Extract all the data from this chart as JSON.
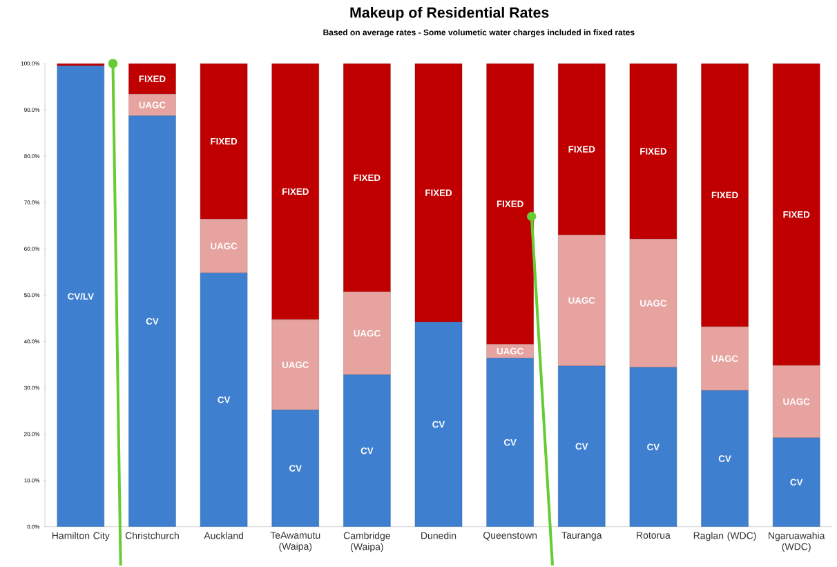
{
  "chart_data": {
    "type": "bar",
    "stacked": true,
    "title": "Makeup of Residential Rates",
    "subtitle": "Based on average rates - Some volumetic water charges included in fixed rates",
    "categories": [
      "Hamilton City",
      "Christchurch",
      "Auckland",
      "TeAwamutu (Waipa)",
      "Cambridge (Waipa)",
      "Dunedin",
      "Queenstown",
      "Tauranga",
      "Rotorua",
      "Raglan (WDC)",
      "Ngaruawahia (WDC)"
    ],
    "series": [
      {
        "color": "#3f7fd0",
        "values": [
          99.5,
          88.7,
          54.8,
          25.2,
          32.8,
          44.2,
          36.4,
          34.7,
          34.4,
          29.4,
          19.2
        ],
        "value_labels": [
          "CV/LV",
          "CV",
          "CV",
          "CV",
          "CV",
          "CV",
          "CV",
          "CV",
          "CV",
          "CV",
          "CV"
        ]
      },
      {
        "color": "#e6a3a0",
        "values": [
          0,
          4.7,
          11.6,
          19.5,
          17.9,
          0,
          3.0,
          28.3,
          27.7,
          13.8,
          15.6
        ],
        "value_labels": [
          null,
          "UAGC",
          "UAGC",
          "UAGC",
          "UAGC",
          null,
          "UAGC",
          "UAGC",
          "UAGC",
          "UAGC",
          "UAGC"
        ]
      },
      {
        "color": "#c00000",
        "values": [
          0.5,
          6.6,
          33.6,
          55.3,
          49.3,
          55.8,
          60.6,
          37.0,
          37.9,
          56.8,
          65.2
        ],
        "value_labels": [
          null,
          "FIXED",
          "FIXED",
          "FIXED",
          "FIXED",
          "FIXED",
          "FIXED",
          "FIXED",
          "FIXED",
          "FIXED",
          "FIXED"
        ]
      }
    ],
    "ylim": [
      0,
      100
    ],
    "yticks": [
      {
        "value": 0,
        "label": "0.0%"
      },
      {
        "value": 10,
        "label": "10.0%"
      },
      {
        "value": 20,
        "label": "20.0%"
      },
      {
        "value": 30,
        "label": "30.0%"
      },
      {
        "value": 40,
        "label": "40.0%"
      },
      {
        "value": 50,
        "label": "50.0%"
      },
      {
        "value": 60,
        "label": "60.0%"
      },
      {
        "value": 70,
        "label": "70.0%"
      },
      {
        "value": 80,
        "label": "80.0%"
      },
      {
        "value": 90,
        "label": "90.0%"
      },
      {
        "value": 100,
        "label": "100.0%"
      }
    ],
    "grid": false
  }
}
